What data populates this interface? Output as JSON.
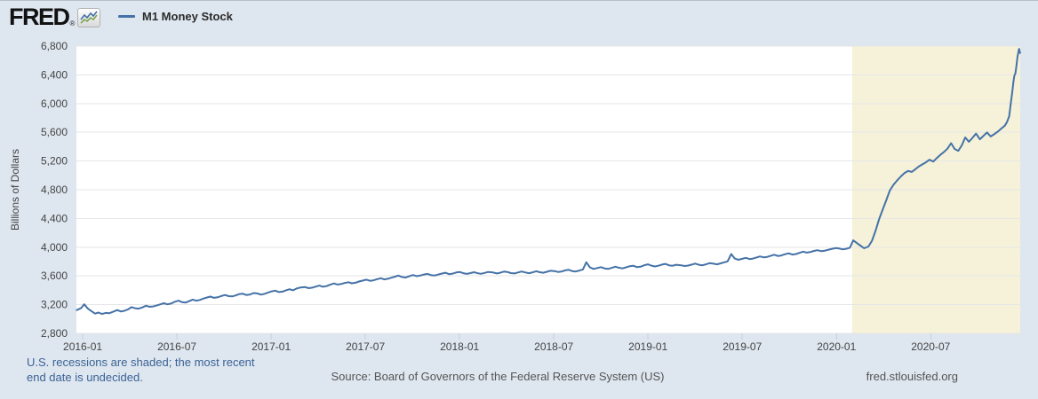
{
  "header": {
    "brand": "FRED",
    "registered": "®"
  },
  "footer": {
    "note_line1": "U.S. recessions are shaded; the most recent",
    "note_line2": "end date is undecided.",
    "source": "Source: Board of Governors of the Federal Reserve System (US)",
    "site": "fred.stlouisfed.org"
  },
  "colors": {
    "background": "#dee6ef",
    "plot_background": "#ffffff",
    "gridline": "#e6e6e6",
    "recession_band": "#f5f2d9",
    "line": "#4572a7",
    "axis_text": "#444444",
    "note_blue": "#3a6396",
    "footer_gray": "#555555",
    "tick_mark": "#c6d0dc"
  },
  "chart_data": {
    "type": "line",
    "title": "M1 Money Stock",
    "xlabel": "",
    "ylabel": "Billions of Dollars",
    "ylim": [
      2800,
      6800
    ],
    "y_tick_step": 400,
    "grid": true,
    "legend_position": "top-left",
    "x_ticks": [
      "2016-01",
      "2016-07",
      "2017-01",
      "2017-07",
      "2018-01",
      "2018-07",
      "2019-01",
      "2019-07",
      "2020-01",
      "2020-07"
    ],
    "recession_band": {
      "start": "2020-02-01",
      "end": "plot-end",
      "note": "U.S. recession, end date undecided"
    },
    "series": [
      {
        "name": "M1 Money Stock",
        "color": "#4572a7",
        "units": "Billions of Dollars",
        "points": [
          [
            "2015-12-20",
            3125
          ],
          [
            "2015-12-28",
            3150
          ],
          [
            "2016-01-04",
            3205
          ],
          [
            "2016-01-11",
            3145
          ],
          [
            "2016-01-18",
            3110
          ],
          [
            "2016-01-25",
            3075
          ],
          [
            "2016-02-01",
            3090
          ],
          [
            "2016-02-08",
            3070
          ],
          [
            "2016-02-15",
            3085
          ],
          [
            "2016-02-22",
            3080
          ],
          [
            "2016-02-29",
            3100
          ],
          [
            "2016-03-07",
            3125
          ],
          [
            "2016-03-14",
            3105
          ],
          [
            "2016-03-21",
            3115
          ],
          [
            "2016-03-28",
            3135
          ],
          [
            "2016-04-04",
            3165
          ],
          [
            "2016-04-11",
            3150
          ],
          [
            "2016-04-18",
            3145
          ],
          [
            "2016-04-25",
            3160
          ],
          [
            "2016-05-02",
            3185
          ],
          [
            "2016-05-09",
            3170
          ],
          [
            "2016-05-16",
            3175
          ],
          [
            "2016-05-23",
            3190
          ],
          [
            "2016-05-30",
            3205
          ],
          [
            "2016-06-06",
            3220
          ],
          [
            "2016-06-13",
            3205
          ],
          [
            "2016-06-20",
            3215
          ],
          [
            "2016-06-27",
            3240
          ],
          [
            "2016-07-04",
            3255
          ],
          [
            "2016-07-11",
            3235
          ],
          [
            "2016-07-18",
            3230
          ],
          [
            "2016-07-25",
            3250
          ],
          [
            "2016-08-01",
            3270
          ],
          [
            "2016-08-08",
            3255
          ],
          [
            "2016-08-15",
            3265
          ],
          [
            "2016-08-22",
            3285
          ],
          [
            "2016-08-29",
            3300
          ],
          [
            "2016-09-05",
            3312
          ],
          [
            "2016-09-12",
            3295
          ],
          [
            "2016-09-19",
            3302
          ],
          [
            "2016-09-26",
            3320
          ],
          [
            "2016-10-03",
            3335
          ],
          [
            "2016-10-10",
            3318
          ],
          [
            "2016-10-17",
            3315
          ],
          [
            "2016-10-24",
            3330
          ],
          [
            "2016-10-31",
            3348
          ],
          [
            "2016-11-07",
            3352
          ],
          [
            "2016-11-14",
            3335
          ],
          [
            "2016-11-21",
            3342
          ],
          [
            "2016-11-28",
            3362
          ],
          [
            "2016-12-05",
            3355
          ],
          [
            "2016-12-12",
            3340
          ],
          [
            "2016-12-19",
            3352
          ],
          [
            "2016-12-26",
            3370
          ],
          [
            "2017-01-02",
            3385
          ],
          [
            "2017-01-09",
            3395
          ],
          [
            "2017-01-16",
            3375
          ],
          [
            "2017-01-23",
            3382
          ],
          [
            "2017-01-30",
            3400
          ],
          [
            "2017-02-06",
            3415
          ],
          [
            "2017-02-13",
            3400
          ],
          [
            "2017-02-20",
            3425
          ],
          [
            "2017-02-27",
            3438
          ],
          [
            "2017-03-06",
            3445
          ],
          [
            "2017-03-13",
            3430
          ],
          [
            "2017-03-20",
            3437
          ],
          [
            "2017-03-27",
            3452
          ],
          [
            "2017-04-03",
            3465
          ],
          [
            "2017-04-10",
            3450
          ],
          [
            "2017-04-17",
            3458
          ],
          [
            "2017-04-24",
            3478
          ],
          [
            "2017-05-01",
            3495
          ],
          [
            "2017-05-08",
            3480
          ],
          [
            "2017-05-15",
            3488
          ],
          [
            "2017-05-22",
            3502
          ],
          [
            "2017-05-29",
            3512
          ],
          [
            "2017-06-05",
            3498
          ],
          [
            "2017-06-12",
            3505
          ],
          [
            "2017-06-19",
            3522
          ],
          [
            "2017-06-26",
            3535
          ],
          [
            "2017-07-03",
            3548
          ],
          [
            "2017-07-10",
            3532
          ],
          [
            "2017-07-17",
            3540
          ],
          [
            "2017-07-24",
            3555
          ],
          [
            "2017-07-31",
            3568
          ],
          [
            "2017-08-07",
            3552
          ],
          [
            "2017-08-14",
            3560
          ],
          [
            "2017-08-21",
            3575
          ],
          [
            "2017-08-28",
            3590
          ],
          [
            "2017-09-04",
            3605
          ],
          [
            "2017-09-11",
            3585
          ],
          [
            "2017-09-18",
            3578
          ],
          [
            "2017-09-25",
            3595
          ],
          [
            "2017-10-02",
            3612
          ],
          [
            "2017-10-09",
            3598
          ],
          [
            "2017-10-16",
            3605
          ],
          [
            "2017-10-23",
            3620
          ],
          [
            "2017-10-30",
            3628
          ],
          [
            "2017-11-06",
            3612
          ],
          [
            "2017-11-13",
            3605
          ],
          [
            "2017-11-20",
            3618
          ],
          [
            "2017-11-27",
            3632
          ],
          [
            "2017-12-04",
            3645
          ],
          [
            "2017-12-11",
            3625
          ],
          [
            "2017-12-18",
            3632
          ],
          [
            "2017-12-25",
            3648
          ],
          [
            "2018-01-01",
            3655
          ],
          [
            "2018-01-08",
            3638
          ],
          [
            "2018-01-15",
            3628
          ],
          [
            "2018-01-22",
            3640
          ],
          [
            "2018-01-29",
            3652
          ],
          [
            "2018-02-05",
            3638
          ],
          [
            "2018-02-12",
            3630
          ],
          [
            "2018-02-19",
            3642
          ],
          [
            "2018-02-26",
            3655
          ],
          [
            "2018-03-05",
            3648
          ],
          [
            "2018-03-12",
            3635
          ],
          [
            "2018-03-19",
            3645
          ],
          [
            "2018-03-26",
            3660
          ],
          [
            "2018-04-02",
            3655
          ],
          [
            "2018-04-09",
            3640
          ],
          [
            "2018-04-16",
            3635
          ],
          [
            "2018-04-23",
            3648
          ],
          [
            "2018-04-30",
            3662
          ],
          [
            "2018-05-07",
            3648
          ],
          [
            "2018-05-14",
            3638
          ],
          [
            "2018-05-21",
            3650
          ],
          [
            "2018-05-28",
            3665
          ],
          [
            "2018-06-04",
            3652
          ],
          [
            "2018-06-11",
            3645
          ],
          [
            "2018-06-18",
            3658
          ],
          [
            "2018-06-25",
            3672
          ],
          [
            "2018-07-02",
            3668
          ],
          [
            "2018-07-09",
            3655
          ],
          [
            "2018-07-16",
            3662
          ],
          [
            "2018-07-23",
            3678
          ],
          [
            "2018-07-30",
            3685
          ],
          [
            "2018-08-06",
            3668
          ],
          [
            "2018-08-13",
            3662
          ],
          [
            "2018-08-20",
            3675
          ],
          [
            "2018-08-27",
            3690
          ],
          [
            "2018-09-03",
            3790
          ],
          [
            "2018-09-10",
            3720
          ],
          [
            "2018-09-17",
            3698
          ],
          [
            "2018-09-24",
            3710
          ],
          [
            "2018-10-01",
            3722
          ],
          [
            "2018-10-08",
            3705
          ],
          [
            "2018-10-15",
            3698
          ],
          [
            "2018-10-22",
            3712
          ],
          [
            "2018-10-29",
            3728
          ],
          [
            "2018-11-05",
            3715
          ],
          [
            "2018-11-12",
            3705
          ],
          [
            "2018-11-19",
            3718
          ],
          [
            "2018-11-26",
            3735
          ],
          [
            "2018-12-03",
            3742
          ],
          [
            "2018-12-10",
            3722
          ],
          [
            "2018-12-17",
            3728
          ],
          [
            "2018-12-24",
            3748
          ],
          [
            "2018-12-31",
            3762
          ],
          [
            "2019-01-07",
            3745
          ],
          [
            "2019-01-14",
            3732
          ],
          [
            "2019-01-21",
            3742
          ],
          [
            "2019-01-28",
            3758
          ],
          [
            "2019-02-04",
            3768
          ],
          [
            "2019-02-11",
            3748
          ],
          [
            "2019-02-18",
            3742
          ],
          [
            "2019-02-25",
            3755
          ],
          [
            "2019-03-04",
            3748
          ],
          [
            "2019-03-11",
            3738
          ],
          [
            "2019-03-18",
            3745
          ],
          [
            "2019-03-25",
            3758
          ],
          [
            "2019-04-01",
            3772
          ],
          [
            "2019-04-08",
            3755
          ],
          [
            "2019-04-15",
            3748
          ],
          [
            "2019-04-22",
            3762
          ],
          [
            "2019-04-29",
            3778
          ],
          [
            "2019-05-06",
            3770
          ],
          [
            "2019-05-13",
            3762
          ],
          [
            "2019-05-20",
            3775
          ],
          [
            "2019-05-27",
            3790
          ],
          [
            "2019-06-03",
            3802
          ],
          [
            "2019-06-10",
            3905
          ],
          [
            "2019-06-17",
            3842
          ],
          [
            "2019-06-24",
            3825
          ],
          [
            "2019-07-01",
            3838
          ],
          [
            "2019-07-08",
            3852
          ],
          [
            "2019-07-15",
            3835
          ],
          [
            "2019-07-22",
            3842
          ],
          [
            "2019-07-29",
            3858
          ],
          [
            "2019-08-05",
            3872
          ],
          [
            "2019-08-12",
            3858
          ],
          [
            "2019-08-19",
            3865
          ],
          [
            "2019-08-26",
            3882
          ],
          [
            "2019-09-02",
            3895
          ],
          [
            "2019-09-09",
            3878
          ],
          [
            "2019-09-16",
            3885
          ],
          [
            "2019-09-23",
            3902
          ],
          [
            "2019-09-30",
            3915
          ],
          [
            "2019-10-07",
            3898
          ],
          [
            "2019-10-14",
            3905
          ],
          [
            "2019-10-21",
            3922
          ],
          [
            "2019-10-28",
            3938
          ],
          [
            "2019-11-04",
            3925
          ],
          [
            "2019-11-11",
            3932
          ],
          [
            "2019-11-18",
            3948
          ],
          [
            "2019-11-25",
            3958
          ],
          [
            "2019-12-02",
            3945
          ],
          [
            "2019-12-09",
            3952
          ],
          [
            "2019-12-16",
            3965
          ],
          [
            "2019-12-23",
            3978
          ],
          [
            "2019-12-30",
            3988
          ],
          [
            "2020-01-06",
            3982
          ],
          [
            "2020-01-13",
            3970
          ],
          [
            "2020-01-20",
            3978
          ],
          [
            "2020-01-27",
            3992
          ],
          [
            "2020-02-03",
            4095
          ],
          [
            "2020-02-10",
            4058
          ],
          [
            "2020-02-17",
            4022
          ],
          [
            "2020-02-24",
            3985
          ],
          [
            "2020-03-02",
            4010
          ],
          [
            "2020-03-09",
            4090
          ],
          [
            "2020-03-16",
            4232
          ],
          [
            "2020-03-23",
            4398
          ],
          [
            "2020-03-30",
            4528
          ],
          [
            "2020-04-06",
            4652
          ],
          [
            "2020-04-13",
            4788
          ],
          [
            "2020-04-20",
            4868
          ],
          [
            "2020-04-27",
            4928
          ],
          [
            "2020-05-04",
            4985
          ],
          [
            "2020-05-11",
            5032
          ],
          [
            "2020-05-18",
            5062
          ],
          [
            "2020-05-25",
            5048
          ],
          [
            "2020-06-01",
            5082
          ],
          [
            "2020-06-08",
            5122
          ],
          [
            "2020-06-15",
            5152
          ],
          [
            "2020-06-22",
            5182
          ],
          [
            "2020-06-29",
            5218
          ],
          [
            "2020-07-06",
            5192
          ],
          [
            "2020-07-13",
            5242
          ],
          [
            "2020-07-20",
            5288
          ],
          [
            "2020-07-27",
            5328
          ],
          [
            "2020-08-03",
            5372
          ],
          [
            "2020-08-10",
            5448
          ],
          [
            "2020-08-17",
            5368
          ],
          [
            "2020-08-24",
            5342
          ],
          [
            "2020-08-31",
            5422
          ],
          [
            "2020-09-07",
            5528
          ],
          [
            "2020-09-14",
            5468
          ],
          [
            "2020-09-21",
            5522
          ],
          [
            "2020-09-28",
            5582
          ],
          [
            "2020-10-05",
            5502
          ],
          [
            "2020-10-12",
            5552
          ],
          [
            "2020-10-19",
            5598
          ],
          [
            "2020-10-26",
            5542
          ],
          [
            "2020-11-02",
            5572
          ],
          [
            "2020-11-09",
            5608
          ],
          [
            "2020-11-16",
            5652
          ],
          [
            "2020-11-23",
            5692
          ],
          [
            "2020-11-27",
            5742
          ],
          [
            "2020-12-01",
            5825
          ],
          [
            "2020-12-04",
            6005
          ],
          [
            "2020-12-07",
            6165
          ],
          [
            "2020-12-09",
            6298
          ],
          [
            "2020-12-11",
            6388
          ],
          [
            "2020-12-13",
            6422
          ],
          [
            "2020-12-15",
            6532
          ],
          [
            "2020-12-17",
            6648
          ],
          [
            "2020-12-19",
            6728
          ],
          [
            "2020-12-20",
            6762
          ],
          [
            "2020-12-21",
            6735
          ],
          [
            "2020-12-22",
            6705
          ]
        ]
      }
    ]
  }
}
